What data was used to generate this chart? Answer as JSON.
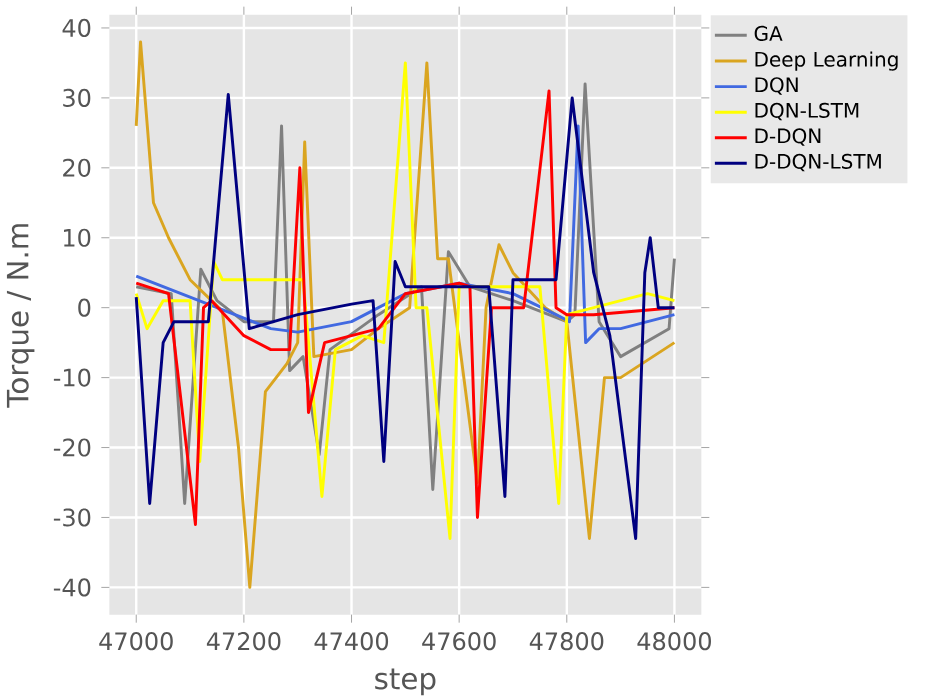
{
  "chart_data": {
    "type": "line",
    "xlabel": "step",
    "ylabel": "Torque / N.m",
    "xlim": [
      46950,
      48050
    ],
    "ylim": [
      -43.9,
      41.9
    ],
    "xticks": [
      47000,
      47200,
      47400,
      47600,
      47800,
      48000
    ],
    "yticks": [
      -40,
      -30,
      -20,
      -10,
      0,
      10,
      20,
      30,
      40
    ],
    "grid": true,
    "legend": "right",
    "series": [
      {
        "name": "GA",
        "color": "#808080",
        "x": [
          47000,
          47065,
          47090,
          47120,
          47150,
          47200,
          47255,
          47270,
          47285,
          47310,
          47340,
          47360,
          47450,
          47530,
          47551,
          47580,
          47620,
          47700,
          47800,
          47815,
          47834,
          47860,
          47900,
          47990,
          48000
        ],
        "values": [
          3,
          2,
          -28,
          5.5,
          1,
          -2,
          -2,
          26,
          -9,
          -7,
          -21,
          -6,
          -1,
          3,
          -26,
          8,
          3,
          1,
          -2,
          -1,
          32,
          -2,
          -7,
          -3,
          7
        ]
      },
      {
        "name": "Deep Learning",
        "color": "#daa520",
        "x": [
          47000,
          47008,
          47032,
          47060,
          47100,
          47160,
          47190,
          47211,
          47240,
          47280,
          47300,
          47313,
          47330,
          47400,
          47450,
          47508,
          47540,
          47560,
          47580,
          47634,
          47650,
          47674,
          47700,
          47760,
          47800,
          47842,
          47870,
          47900,
          48000
        ],
        "values": [
          26,
          38,
          15,
          10,
          4,
          -0.5,
          -20,
          -40,
          -12,
          -8,
          -5,
          23.7,
          -7,
          -6,
          -3,
          0,
          35,
          7,
          7,
          -25,
          0,
          9,
          5,
          0,
          -2,
          -33,
          -10,
          -10,
          -5
        ]
      },
      {
        "name": "DQN",
        "color": "#4169e1",
        "x": [
          47000,
          47050,
          47150,
          47250,
          47300,
          47400,
          47450,
          47500,
          47600,
          47700,
          47780,
          47805,
          47821,
          47835,
          47860,
          47900,
          48000
        ],
        "values": [
          4.5,
          3,
          0,
          -3,
          -3.5,
          -2,
          0,
          2,
          3.5,
          2,
          -1,
          -2,
          26,
          -5,
          -3,
          -3,
          -1
        ]
      },
      {
        "name": "DQN-LSTM",
        "color": "#ffff00",
        "x": [
          47000,
          47020,
          47050,
          47100,
          47118,
          47144,
          47160,
          47310,
          47345,
          47370,
          47420,
          47460,
          47500,
          47520,
          47540,
          47583,
          47600,
          47750,
          47785,
          47800,
          47900,
          47950,
          48000
        ],
        "values": [
          2,
          -3,
          1,
          1,
          -22,
          6.6,
          4,
          4,
          -27,
          -6,
          -4,
          -5,
          35,
          0,
          0,
          -33,
          3,
          3,
          -28,
          -1,
          1,
          2,
          1
        ]
      },
      {
        "name": "D-DQN",
        "color": "#ff0000",
        "x": [
          47000,
          47060,
          47110,
          47125,
          47140,
          47200,
          47250,
          47285,
          47304,
          47320,
          47350,
          47450,
          47500,
          47600,
          47620,
          47634,
          47660,
          47720,
          47767,
          47780,
          47800,
          47850,
          48000
        ],
        "values": [
          3.5,
          2,
          -31,
          0,
          1,
          -4,
          -6,
          -6,
          20,
          -15,
          -5,
          -3,
          2,
          3.5,
          3,
          -30,
          0,
          0,
          31,
          0,
          -1,
          -1,
          0
        ]
      },
      {
        "name": "D-DQN-LSTM",
        "color": "#000080",
        "x": [
          47000,
          47025,
          47050,
          47070,
          47134,
          47171,
          47210,
          47300,
          47400,
          47440,
          47460,
          47481,
          47500,
          47580,
          47655,
          47685,
          47700,
          47780,
          47810,
          47850,
          47880,
          47928,
          47945,
          47955,
          47970,
          48000
        ],
        "values": [
          1.5,
          -28,
          -5,
          -2,
          -2,
          30.5,
          -3,
          -1,
          0.5,
          1,
          -22,
          6.6,
          3,
          3,
          3,
          -27,
          4,
          4,
          30,
          5,
          -4,
          -33,
          5,
          10,
          0,
          0
        ]
      }
    ]
  }
}
